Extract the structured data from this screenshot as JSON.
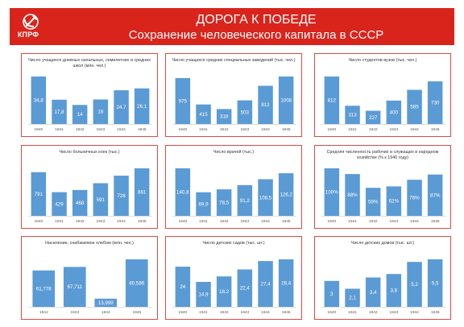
{
  "header": {
    "logo_text": "КПРФ",
    "title": "ДОРОГА К ПОБЕДЕ",
    "subtitle": "Сохранение человеческого капитала в СССР"
  },
  "colors": {
    "header_bg": "#d9241c",
    "bar": "#5b9bd5",
    "panel_border": "#e14a44"
  },
  "chart_data": [
    {
      "type": "bar",
      "title": "Число учащихся дневных начальных, семилетних и средних школ (млн. чел.)",
      "categories": [
        "1940",
        "1941",
        "1942",
        "1943",
        "1944",
        "1945"
      ],
      "values": [
        34.8,
        17.8,
        14,
        18,
        24.7,
        26.1
      ],
      "labels": [
        "34,8",
        "17,8",
        "14",
        "18",
        "24,7",
        "26,1"
      ]
    },
    {
      "type": "bar",
      "title": "Число учащихся средних специальных заведений (тыс. чел.)",
      "categories": [
        "1940",
        "1941",
        "1942",
        "1943",
        "1944",
        "1945"
      ],
      "values": [
        975,
        415,
        318,
        503,
        812,
        1008
      ],
      "labels": [
        "975",
        "415",
        "318",
        "503",
        "812",
        "1008"
      ]
    },
    {
      "type": "bar",
      "title": "Число студентов вузов (тыс. чел.)",
      "categories": [
        "1940",
        "1941",
        "1942",
        "1943",
        "1944",
        "1945"
      ],
      "values": [
        812,
        313,
        227,
        400,
        585,
        730
      ],
      "labels": [
        "812",
        "313",
        "227",
        "400",
        "585",
        "730"
      ]
    },
    {
      "type": "bar",
      "title": "Число больничных коек (тыс.)",
      "categories": [
        "1940",
        "1941",
        "1942",
        "1943",
        "1944",
        "1945"
      ],
      "values": [
        791,
        429,
        468,
        591,
        728,
        861
      ],
      "labels": [
        "791",
        "429",
        "468",
        "591",
        "728",
        "861"
      ]
    },
    {
      "type": "bar",
      "title": "Число врачей (тыс.)",
      "categories": [
        "1940",
        "1941",
        "1942",
        "1943",
        "1944",
        "1945"
      ],
      "values": [
        140.8,
        69.9,
        78.5,
        91.2,
        108.5,
        126.2
      ],
      "labels": [
        "140,8",
        "69,9",
        "78,5",
        "91,2",
        "108,5",
        "126,2"
      ]
    },
    {
      "type": "bar",
      "title": "Средняя численность рабочих и служащих в народном хозяйстве (% к 1940 году)",
      "categories": [
        "1940",
        "1941",
        "1942",
        "1943",
        "1944",
        "1945"
      ],
      "values": [
        100,
        88,
        59,
        62,
        76,
        87
      ],
      "labels": [
        "100%",
        "88%",
        "59%",
        "62%",
        "76%",
        "87%"
      ]
    },
    {
      "type": "bar",
      "title": "Население, снабжаемое хлебом (млн. чел.)",
      "categories": [
        "1942",
        "1943",
        "1944",
        "1945"
      ],
      "values": [
        61.778,
        67.711,
        13.999,
        80.586
      ],
      "labels": [
        "61,778",
        "67,711",
        "13,999",
        "80,586"
      ]
    },
    {
      "type": "bar",
      "title": "Число детских садов (тыс. шт.)",
      "categories": [
        "1940",
        "1941",
        "1942",
        "1943",
        "1944",
        "1945"
      ],
      "values": [
        24,
        14.9,
        18.2,
        22.4,
        27.4,
        28.4
      ],
      "labels": [
        "24",
        "14,9",
        "18,2",
        "22,4",
        "27,4",
        "28,4"
      ]
    },
    {
      "type": "bar",
      "title": "Число детских домов (тыс. шт.)",
      "categories": [
        "1940",
        "1941",
        "1942",
        "1943",
        "1944",
        "1945"
      ],
      "values": [
        3,
        2.1,
        3.4,
        3.8,
        5.2,
        5.5
      ],
      "labels": [
        "3",
        "2,1",
        "3,4",
        "3,8",
        "5,2",
        "5,5"
      ]
    }
  ]
}
